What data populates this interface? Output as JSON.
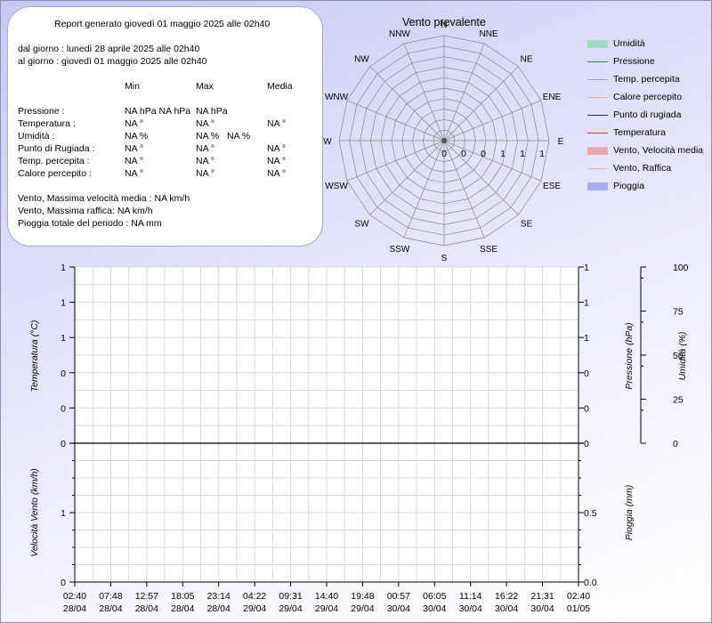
{
  "report": {
    "title": "Report generato giovedì 01 maggio 2025 alle 02h40",
    "from": "dal giorno : lunedì 28 aprile 2025 alle 02h40",
    "to": "al giorno : giovedì 01 maggio 2025 alle 02h40",
    "columns": [
      "Min",
      "Max",
      "Media"
    ],
    "rows": [
      {
        "label": "Pressione :",
        "min": "NA hPa NA hPa",
        "max": "NA hPa",
        "avg": ""
      },
      {
        "label": "Temperatura :",
        "min": "NA °",
        "max": "NA °",
        "avg": "NA °"
      },
      {
        "label": "Umidità :",
        "min": "NA %",
        "max": "NA %   NA %",
        "avg": ""
      },
      {
        "label": "Punto di Rugiada :",
        "min": "NA °",
        "max": "NA °",
        "avg": "NA °"
      },
      {
        "label": "Temp. percepita :",
        "min": "NA °",
        "max": "NA °",
        "avg": "NA °"
      },
      {
        "label": "Calore percepito :",
        "min": "NA °",
        "max": "NA °",
        "avg": "NA °"
      }
    ],
    "wind_avg": "Vento, Massima velocità media : NA km/h",
    "wind_gust": "Vento, Massima raffica: NA km/h",
    "rain_total": "Pioggia totale del periodo : NA mm"
  },
  "windrose": {
    "title": "Vento prevalente",
    "directions": [
      "N",
      "NNE",
      "NE",
      "ENE",
      "E",
      "ESE",
      "SE",
      "SSE",
      "S",
      "SSW",
      "SW",
      "WSW",
      "W",
      "WNW",
      "NW",
      "NNW"
    ],
    "scale_labels": [
      "0",
      "0",
      "0",
      "1",
      "1",
      "1"
    ]
  },
  "legend": {
    "items": [
      {
        "label": "Umidità",
        "color": "#9fd9c0",
        "kind": "area"
      },
      {
        "label": "Pressione",
        "color": "#2e8b57",
        "kind": "line"
      },
      {
        "label": "Temp. percepita",
        "color": "#a0a0d8",
        "kind": "line"
      },
      {
        "label": "Calore percepito",
        "color": "#f0a8a8",
        "kind": "line"
      },
      {
        "label": "Punto di rugiada",
        "color": "#202080",
        "kind": "line"
      },
      {
        "label": "Temperatura",
        "color": "#e03030",
        "kind": "line"
      },
      {
        "label": "Vento, Velocità media",
        "color": "#f0a8b0",
        "kind": "area"
      },
      {
        "label": "Vento, Raffica",
        "color": "#f0a8a8",
        "kind": "line"
      },
      {
        "label": "Pioggia",
        "color": "#a8acf0",
        "kind": "area"
      }
    ]
  },
  "chart_data": [
    {
      "type": "line",
      "x": [
        "02:40 28/04",
        "07:48 28/04",
        "12:57 28/04",
        "18:05 28/04",
        "23:14 28/04",
        "04:22 29/04",
        "09:31 29/04",
        "14:40 29/04",
        "19:48 29/04",
        "00:57 30/04",
        "06:05 30/04",
        "11:14 30/04",
        "16:22 30/04",
        "21:31 30/04",
        "02:40 01/05"
      ],
      "series": [],
      "ylabel": "Temperatura (°C)",
      "y_ticks_left": [
        "1",
        "1",
        "1",
        "0",
        "0",
        "0"
      ],
      "y_ticks_right": [
        "1",
        "1",
        "1",
        "0",
        "0",
        "0"
      ],
      "ylabel_right_1": "Pressione (hPa)",
      "ylabel_right_2": "Umidità (%)",
      "y_ticks_humidity": [
        "100",
        "75",
        "50",
        "25",
        "0"
      ],
      "ylim_humidity": [
        0,
        100
      ],
      "grid": true
    },
    {
      "type": "line",
      "x": [
        "02:40 28/04",
        "07:48 28/04",
        "12:57 28/04",
        "18:05 28/04",
        "23:14 28/04",
        "04:22 29/04",
        "09:31 29/04",
        "14:40 29/04",
        "19:48 29/04",
        "00:57 30/04",
        "06:05 30/04",
        "11:14 30/04",
        "16:22 30/04",
        "21:31 30/04",
        "02:40 01/05"
      ],
      "series": [],
      "ylabel": "Velocità Vento (km/h)",
      "ylabel_right": "Pioggia (mm)",
      "y_ticks_left": [
        "1",
        "0"
      ],
      "y_ticks_right": [
        "0.5",
        "0.0"
      ],
      "grid": true
    }
  ],
  "time_axis": {
    "times": [
      "02:40",
      "07:48",
      "12:57",
      "18:05",
      "23:14",
      "04:22",
      "09:31",
      "14:40",
      "19:48",
      "00:57",
      "06:05",
      "11:14",
      "16:22",
      "21:31",
      "02:40"
    ],
    "dates": [
      "28/04",
      "28/04",
      "28/04",
      "28/04",
      "28/04",
      "29/04",
      "29/04",
      "29/04",
      "29/04",
      "30/04",
      "30/04",
      "30/04",
      "30/04",
      "30/04",
      "01/05"
    ]
  }
}
